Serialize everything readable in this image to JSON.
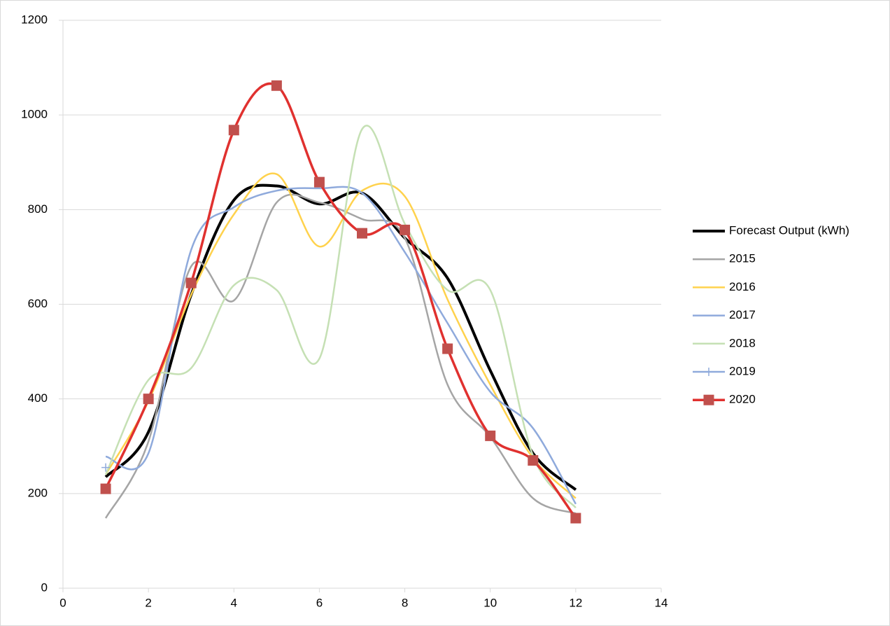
{
  "chart_data": {
    "type": "line",
    "x": [
      1,
      2,
      3,
      4,
      5,
      6,
      7,
      8,
      9,
      10,
      11,
      12
    ],
    "series": [
      {
        "name": "Forecast Output (kWh)",
        "color": "#000000",
        "values": [
          235,
          330,
          620,
          820,
          850,
          812,
          835,
          740,
          655,
          460,
          285,
          208
        ]
      },
      {
        "name": "2015",
        "color": "#a5a5a5",
        "values": [
          148,
          310,
          680,
          608,
          815,
          815,
          780,
          740,
          430,
          320,
          190,
          158
        ]
      },
      {
        "name": "2016",
        "color": "#ffd24d",
        "values": [
          240,
          395,
          620,
          790,
          875,
          722,
          840,
          828,
          610,
          430,
          275,
          190
        ]
      },
      {
        "name": "2017",
        "color": "#8faadc",
        "values": [
          278,
          285,
          715,
          805,
          840,
          845,
          835,
          710,
          560,
          415,
          338,
          178
        ]
      },
      {
        "name": "2018",
        "color": "#c5e0b4",
        "values": [
          240,
          440,
          465,
          640,
          630,
          485,
          970,
          770,
          630,
          630,
          280,
          170
        ]
      },
      {
        "name": "2019",
        "color": "#8faadc",
        "marker": "plus",
        "values": [
          255,
          null,
          null,
          null,
          null,
          null,
          null,
          null,
          null,
          null,
          null,
          null
        ]
      },
      {
        "name": "2020",
        "color": "#e0312f",
        "marker": "square",
        "marker_color": "#c0504d",
        "values": [
          210,
          400,
          645,
          968,
          1062,
          858,
          750,
          757,
          506,
          322,
          270,
          148
        ]
      }
    ],
    "xlim": [
      0,
      14
    ],
    "xticks": [
      0,
      2,
      4,
      6,
      8,
      10,
      12,
      14
    ],
    "ylim": [
      0,
      1200
    ],
    "yticks": [
      0,
      200,
      400,
      600,
      800,
      1000,
      1200
    ],
    "grid": true,
    "smooth": true,
    "legend": "right"
  }
}
